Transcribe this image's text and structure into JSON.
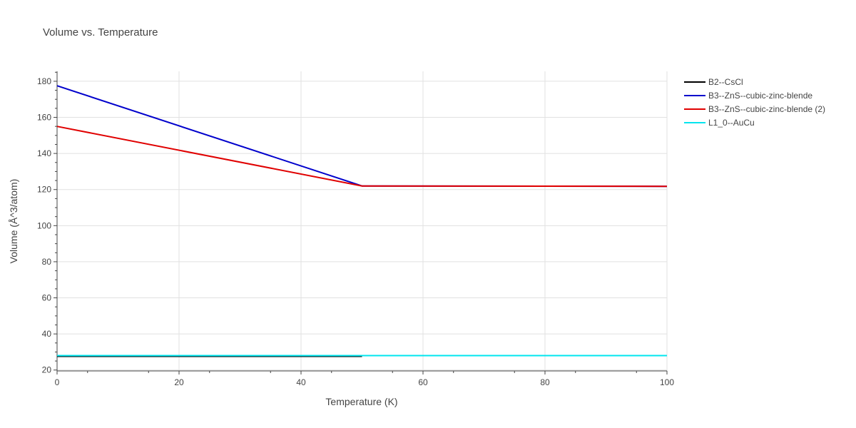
{
  "chart_data": {
    "type": "line",
    "title": "Volume vs. Temperature",
    "xlabel": "Temperature (K)",
    "ylabel": "Volume (Å^3/atom)",
    "xlim": [
      0,
      100
    ],
    "ylim": [
      19.5,
      185.5
    ],
    "xticks": [
      0,
      20,
      40,
      60,
      80,
      100
    ],
    "yticks": [
      20,
      40,
      60,
      80,
      100,
      120,
      140,
      160,
      180
    ],
    "grid": true,
    "legend_position": "top-right outside plot",
    "series": [
      {
        "name": "B2--CsCl",
        "color": "#000000",
        "x": [
          0,
          50
        ],
        "y": [
          27.6,
          27.6
        ]
      },
      {
        "name": "B3--ZnS--cubic-zinc-blende",
        "color": "#0000cc",
        "x": [
          0,
          50,
          100
        ],
        "y": [
          177.5,
          122.0,
          121.8
        ]
      },
      {
        "name": "B3--ZnS--cubic-zinc-blende (2)",
        "color": "#e00000",
        "x": [
          0,
          50,
          100
        ],
        "y": [
          155.0,
          122.0,
          121.8
        ]
      },
      {
        "name": "L1_0--AuCu",
        "color": "#00e5ee",
        "x": [
          0,
          100
        ],
        "y": [
          28.0,
          28.0
        ]
      }
    ]
  }
}
